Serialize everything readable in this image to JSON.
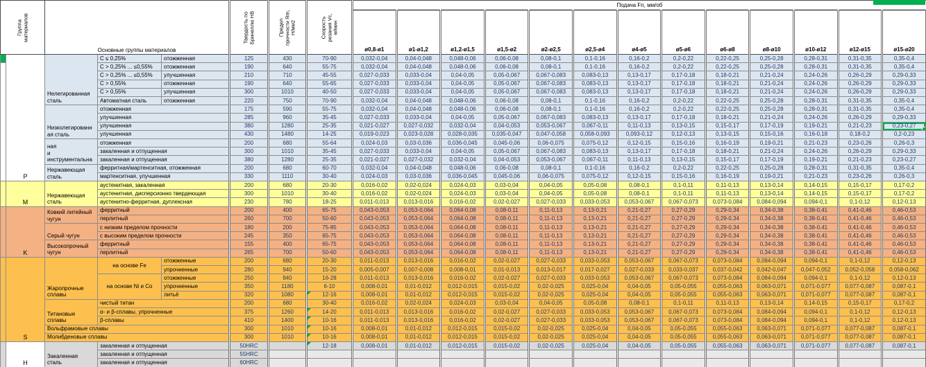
{
  "header": {
    "feed_title": "Подача Fn, мм/об",
    "col_group": "Группа\nматериалов",
    "col_materials": "Основные группы материалов",
    "col_hardness": "Твердость по\nБринеллю HB",
    "col_strength": "Предел\nпрочности Rm,\nН/мм2",
    "col_speed": "Скорость\nрезания Vc,\nм/мин",
    "diameters": [
      "ø0,8-ø1",
      "ø1-ø1,2",
      "ø1,2-ø1,5",
      "ø1,5-ø2",
      "ø2-ø2,5",
      "ø2,5-ø4",
      "ø4-ø5",
      "ø5-ø6",
      "ø6-ø8",
      "ø8-ø10",
      "ø10-ø12",
      "ø12-ø15",
      "ø15-ø20"
    ]
  },
  "colors": {
    "p_blue": "#DCE6F1",
    "m_yellow": "#FFFF9C",
    "k_salmon": "#F4B183",
    "s_orange": "#FDC04E",
    "h_grey": "#D9D9D9",
    "selection_green": "#00B050",
    "data_text": "#1F3864"
  },
  "feed_patterns": {
    "A": [
      "0,032-0,04",
      "0,04-0,048",
      "0,048-0,06",
      "0,06-0,08",
      "0,08-0,1",
      "0,1-0,16",
      "0,16-0,2",
      "0,2-0,22",
      "0,22-0,25",
      "0,25-0,28",
      "0,28-0,31",
      "0,31-0,35",
      "0,35-0,4"
    ],
    "B": [
      "0,027-0,033",
      "0,033-0,04",
      "0,04-0,05",
      "0,05-0,067",
      "0,067-0,083",
      "0,083-0,13",
      "0,13-0,17",
      "0,17-0,18",
      "0,18-0,21",
      "0,21-0,24",
      "0,24-0,26",
      "0,26-0,29",
      "0,29-0,33"
    ],
    "C": [
      "0,021-0,027",
      "0,027-0,032",
      "0,032-0,04",
      "0,04-0,053",
      "0,053-0,067",
      "0,067-0,11",
      "0,11-0,13",
      "0,13-0,15",
      "0,15-0,17",
      "0,17-0,19",
      "0,19-0,21",
      "0,21-0,23",
      "0,23-0,27"
    ],
    "D": [
      "0,019-0,023",
      "0,023-0,028",
      "0,028-0,035",
      "0,035-0,047",
      "0,047-0,058",
      "0,058-0,093",
      "0,093-0,12",
      "0,12-0,13",
      "0,13-0,15",
      "0,15-0,16",
      "0,16-0,18",
      "0,18-0,2",
      "0,2-0,23"
    ],
    "E": [
      "0,024-0,03",
      "0,03-0,036",
      "0,036-0,045",
      "0,045-0,06",
      "0,06-0,075",
      "0,075-0,12",
      "0,12-0,15",
      "0,15-0,16",
      "0,16-0,19",
      "0,19-0,21",
      "0,21-0,23",
      "0,23-0,26",
      "0,26-0,3"
    ],
    "F": [
      "0,016-0,02",
      "0,02-0,024",
      "0,024-0,03",
      "0,03-0,04",
      "0,04-0,05",
      "0,05-0,08",
      "0,08-0,1",
      "0,1-0,11",
      "0,11-0,13",
      "0,13-0,14",
      "0,14-0,15",
      "0,15-0,17",
      "0,17-0,2"
    ],
    "G": [
      "0,011-0,013",
      "0,013-0,016",
      "0,016-0,02",
      "0,02-0,027",
      "0,027-0,033",
      "0,033-0,053",
      "0,053-0,067",
      "0,067-0,073",
      "0,073-0,084",
      "0,084-0,094",
      "0,094-0,1",
      "0,1-0,12",
      "0,12-0,13"
    ],
    "H": [
      "0,043-0,053",
      "0,053-0,064",
      "0,064-0,08",
      "0,08-0,11",
      "0,11-0,13",
      "0,13-0,21",
      "0,21-0,27",
      "0,27-0,29",
      "0,29-0,34",
      "0,34-0,38",
      "0,38-0,41",
      "0,41-0,46",
      "0,46-0,53"
    ],
    "I": [
      "0,005-0,007",
      "0,007-0,008",
      "0,008-0,01",
      "0,01-0,013",
      "0,013-0,017",
      "0,017-0,027",
      "0,027-0,033",
      "0,033-0,037",
      "0,037-0,042",
      "0,042-0,047",
      "0,047-0,052",
      "0,052-0,058",
      "0,058-0,062"
    ],
    "J": [
      "0,008-0,01",
      "0,01-0,012",
      "0,012-0,015",
      "0,015-0,02",
      "0,02-0,025",
      "0,025-0,04",
      "0,04-0,05",
      "0,05-0,055",
      "0,055-0,063",
      "0,063-0,071",
      "0,071-0,077",
      "0,077-0,087",
      "0,087-0,1"
    ]
  },
  "groups": [
    {
      "letter": "P",
      "row_bg": "#DCE6F1",
      "letter_bg": "#FFFFFF",
      "strip_segments": [
        {
          "rows": 1,
          "bg": "#00B050"
        },
        {
          "rows": 14,
          "bg": "#FFFFFF"
        }
      ],
      "blocks": [
        {
          "name": "Нелегированная\nсталь",
          "type": "pair",
          "rows": [
            {
              "sub1": "С ≤ 0,25%",
              "sub2": "отожженная",
              "hb": "125",
              "rm": "430",
              "vc": "70-90",
              "feed": "A"
            },
            {
              "sub1": "С > 0,25% ... ≤0,55%",
              "sub2": "отожженная",
              "hb": "190",
              "rm": "640",
              "vc": "55-75",
              "feed": "A"
            },
            {
              "sub1": "С > 0,25% ... ≤0,55%",
              "sub2": "улучшенная",
              "hb": "210",
              "rm": "710",
              "vc": "45-55",
              "feed": "B"
            },
            {
              "sub1": "С > 0,55%",
              "sub2": "отожженная",
              "hb": "190",
              "rm": "640",
              "vc": "55-65",
              "feed": "B"
            },
            {
              "sub1": "С > 0,55%",
              "sub2": "улучшенная",
              "hb": "300",
              "rm": "1010",
              "vc": "40-50",
              "feed": "B"
            },
            {
              "sub1": "Автоматная сталь",
              "sub2": "отожженная",
              "hb": "220",
              "rm": "750",
              "vc": "70-90",
              "feed": "A"
            }
          ]
        },
        {
          "name": "Низколегированн\nая сталь",
          "type": "merged",
          "rows": [
            {
              "sub": "отожженная",
              "hb": "175",
              "rm": "590",
              "vc": "55-75",
              "feed": "A"
            },
            {
              "sub": "улучшенная",
              "hb": "285",
              "rm": "960",
              "vc": "35-45",
              "feed": "B"
            },
            {
              "sub": "улучшенная",
              "hb": "380",
              "rm": "1280",
              "vc": "25-35",
              "feed": "C",
              "selected_col": 13
            },
            {
              "sub": "улучшенная",
              "hb": "430",
              "rm": "1480",
              "vc": "14-25",
              "feed": "D"
            }
          ]
        },
        {
          "name": "ная\nи\nинструментальна",
          "type": "merged",
          "rows": [
            {
              "sub": "отожженная",
              "hb": "200",
              "rm": "680",
              "vc": "55-64",
              "feed": "E"
            },
            {
              "sub": "закаленная и отпущенная",
              "hb": "300",
              "rm": "1010",
              "vc": "35-45",
              "feed": "B"
            },
            {
              "sub": "закаленная и отпущенная",
              "hb": "380",
              "rm": "1280",
              "vc": "25-35",
              "feed": "C"
            }
          ]
        },
        {
          "name": "Нержавеющая\nсталь",
          "type": "merged",
          "rows": [
            {
              "sub": "ферритная/мартенситная, отожженная",
              "hb": "200",
              "rm": "680",
              "vc": "60-70",
              "feed": "A"
            },
            {
              "sub": "мартенситная, улучшенная",
              "hb": "330",
              "rm": "1110",
              "vc": "30-40",
              "feed": "E"
            }
          ]
        }
      ]
    },
    {
      "letter": "M",
      "row_bg": "#FFFF9C",
      "letter_bg": "#FFFF9C",
      "strip_segments": [
        {
          "rows": 3,
          "bg": "#FFFF9C"
        }
      ],
      "blocks": [
        {
          "name": "Нержавеющая\nсталь",
          "type": "merged",
          "rows": [
            {
              "sub": "аустенитная, закаленная",
              "hb": "200",
              "rm": "680",
              "vc": "20-30",
              "feed": "F"
            },
            {
              "sub": "аустенитная, дисперсионно твердеющая",
              "hb": "300",
              "rm": "1010",
              "vc": "30-40",
              "feed": "F"
            },
            {
              "sub": "аустенитно-ферритная, дуплексная",
              "hb": "230",
              "rm": "780",
              "vc": "18-25",
              "feed": "G"
            }
          ]
        }
      ]
    },
    {
      "letter": "K",
      "row_bg": "#F4B183",
      "letter_bg": "#F4B183",
      "strip_segments": [
        {
          "rows": 6,
          "bg": "#F4B183"
        }
      ],
      "blocks": [
        {
          "name": "Ковкий литейный\nчугун",
          "type": "merged",
          "rows": [
            {
              "sub": "ферритный",
              "hb": "200",
              "rm": "400",
              "vc": "65-75",
              "feed": "H"
            },
            {
              "sub": "перлитный",
              "hb": "260",
              "rm": "700",
              "vc": "50-60",
              "feed": "H"
            }
          ]
        },
        {
          "name": "Серый чугун",
          "type": "merged",
          "rows": [
            {
              "sub": "с низким пределом прочности",
              "hb": "180",
              "rm": "200",
              "vc": "75-85",
              "feed": "H"
            },
            {
              "sub": "с высоким пределом прочности",
              "hb": "245",
              "rm": "350",
              "vc": "65-75",
              "feed": "H"
            }
          ]
        },
        {
          "name": "Высокопрочный\nчугун",
          "type": "merged",
          "rows": [
            {
              "sub": "ферритный",
              "hb": "155",
              "rm": "400",
              "vc": "65-75",
              "feed": "H"
            },
            {
              "sub": "перлитный",
              "hb": "265",
              "rm": "700",
              "vc": "50-60",
              "feed": "H"
            }
          ]
        }
      ]
    },
    {
      "letter": "S",
      "row_bg": "#FDC04E",
      "letter_bg": "#FDC04E",
      "strip_segments": [
        {
          "rows": 10,
          "bg": "#FDC04E"
        }
      ],
      "blocks": [
        {
          "name": "Жаропрочные\nсплавы",
          "type": "nested",
          "subblocks": [
            {
              "name": "на основе Fe",
              "rows": [
                {
                  "sub": "отожженные",
                  "hb": "200",
                  "rm": "680",
                  "vc": "20-30",
                  "feed": "G"
                },
                {
                  "sub": "упрочненные",
                  "hb": "280",
                  "rm": "940",
                  "vc": "15-20",
                  "feed": "I"
                }
              ]
            },
            {
              "name": "на основе Ni и Co",
              "rows": [
                {
                  "sub": "отожженные",
                  "hb": "250",
                  "rm": "840",
                  "vc": "16-28",
                  "feed": "G"
                },
                {
                  "sub": "упрочненные",
                  "hb": "350",
                  "rm": "1180",
                  "vc": "6-10",
                  "feed": "J"
                },
                {
                  "sub": "литьё",
                  "hb": "320",
                  "rm": "1080",
                  "vc": "12-16",
                  "feed": "J",
                  "flag": true
                }
              ]
            }
          ]
        },
        {
          "name": "Титановые\nсплавы",
          "type": "merged",
          "rows": [
            {
              "sub": "чистый титан",
              "hb": "200",
              "rm": "680",
              "vc": "30-40",
              "feed": "F"
            },
            {
              "sub": "α- и β-сплавы, упрочненные",
              "hb": "375",
              "rm": "1260",
              "vc": "14-20",
              "feed": "G",
              "flag": true
            },
            {
              "sub": "β-сплавы",
              "hb": "410",
              "rm": "1400",
              "vc": "10-16",
              "feed": "G",
              "flag": true
            }
          ]
        },
        {
          "name": "Вольфрамовые сплавы",
          "type": "wide",
          "rows": [
            {
              "hb": "300",
              "rm": "1010",
              "vc": "10-16",
              "feed": "J",
              "flag": true
            }
          ]
        },
        {
          "name": "Молибденовые сплавы",
          "type": "wide",
          "rows": [
            {
              "hb": "300",
              "rm": "1010",
              "vc": "10-16",
              "feed": "J",
              "flag": true
            }
          ]
        }
      ]
    },
    {
      "letter": "H",
      "row_bg": "#D9D9D9",
      "letter_bg": "#FFFFFF",
      "strip_segments": [
        {
          "rows": 3,
          "bg": "#D9D9D9"
        }
      ],
      "blocks": [
        {
          "name": "Закаленная\nсталь",
          "type": "merged",
          "rows": [
            {
              "sub": "закаленная и отпущенная",
              "hb": "50HRC",
              "rm": "",
              "vc": "12-18",
              "feed": "J",
              "flag": true
            },
            {
              "sub": "закаленная и отпущенная",
              "hb": "55HRC",
              "rm": "",
              "vc": "",
              "feed": "",
              "feed_bg": "#E9E9E9"
            },
            {
              "sub": "закаленная и отпущенная",
              "hb": "60HRC",
              "rm": "",
              "vc": "",
              "feed": "",
              "feed_bg": "#E9E9E9"
            }
          ]
        }
      ]
    }
  ]
}
